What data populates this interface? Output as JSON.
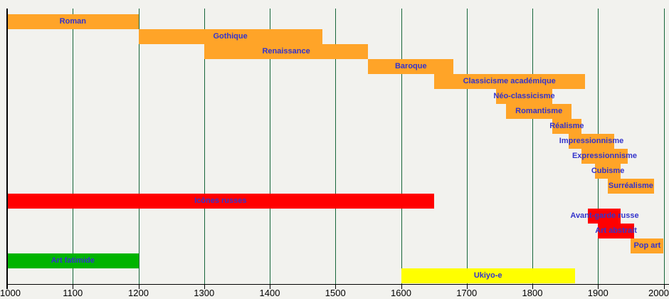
{
  "page": {
    "background": "#f2f2ee"
  },
  "chart_data": {
    "type": "bar",
    "variant": "horizontal-timeline-gantt",
    "title": "",
    "xlabel": "",
    "ylabel": "",
    "xlim": [
      1000,
      2000
    ],
    "x_ticks": [
      1000,
      1100,
      1200,
      1300,
      1400,
      1500,
      1600,
      1700,
      1800,
      1900,
      2000
    ],
    "grid": "vertical",
    "grid_color": "#17663a",
    "axis_color": "#000000",
    "label_color": "#3333cc",
    "palette": {
      "orange": "#ffa428",
      "red": "#ff0000",
      "green": "#00b400",
      "yellow": "#ffff00"
    },
    "rows": [
      {
        "label": "Roman",
        "start": 1000,
        "end": 1200,
        "color": "#ffa428"
      },
      {
        "label": "Gothique",
        "start": 1200,
        "end": 1480,
        "color": "#ffa428"
      },
      {
        "label": "Renaissance",
        "start": 1300,
        "end": 1550,
        "color": "#ffa428"
      },
      {
        "label": "Baroque",
        "start": 1550,
        "end": 1680,
        "color": "#ffa428"
      },
      {
        "label": "Classicisme académique",
        "start": 1650,
        "end": 1880,
        "color": "#ffa428"
      },
      {
        "label": "Néo-classicisme",
        "start": 1745,
        "end": 1830,
        "color": "#ffa428"
      },
      {
        "label": "Romantisme",
        "start": 1760,
        "end": 1860,
        "color": "#ffa428"
      },
      {
        "label": "Réalisme",
        "start": 1830,
        "end": 1875,
        "color": "#ffa428"
      },
      {
        "label": "Impressionnisme",
        "start": 1855,
        "end": 1925,
        "color": "#ffa428"
      },
      {
        "label": "Expressionnisme",
        "start": 1875,
        "end": 1945,
        "color": "#ffa428"
      },
      {
        "label": "Cubisme",
        "start": 1895,
        "end": 1935,
        "color": "#ffa428"
      },
      {
        "label": "Surréalisme",
        "start": 1915,
        "end": 1985,
        "color": "#ffa428"
      },
      {
        "label": "Icônes russes",
        "start": 1000,
        "end": 1650,
        "color": "#ff0000"
      },
      {
        "label": "Avant-garde russe",
        "start": 1885,
        "end": 1935,
        "color": "#ff0000"
      },
      {
        "label": "Art abstrait",
        "start": 1900,
        "end": 1955,
        "color": "#ff0000"
      },
      {
        "label": "Pop art",
        "start": 1950,
        "end": 2000,
        "color": "#ffa428"
      },
      {
        "label": "Art fatimide",
        "start": 1000,
        "end": 1200,
        "color": "#00b400"
      },
      {
        "label": "Ukiyo-e",
        "start": 1600,
        "end": 1865,
        "color": "#ffff00"
      }
    ]
  }
}
